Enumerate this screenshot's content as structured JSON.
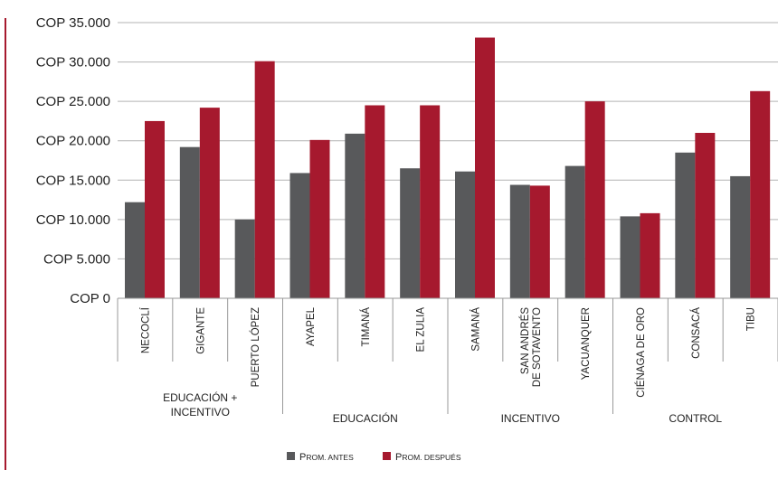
{
  "chart_data": {
    "type": "bar",
    "title": "",
    "xlabel": "",
    "ylabel": "",
    "ylim": [
      0,
      35000
    ],
    "yticks": [
      "COP 0",
      "COP 5.000",
      "COP 10.000",
      "COP 15.000",
      "COP 20.000",
      "COP 25.000",
      "COP 30.000",
      "COP 35.000"
    ],
    "ytick_values": [
      0,
      5000,
      10000,
      15000,
      20000,
      25000,
      30000,
      35000
    ],
    "grid": true,
    "legend_position": "bottom-center",
    "categories": [
      [
        "NECOCLÍ"
      ],
      [
        "GIGANTE"
      ],
      [
        "PUERTO LÓPEZ"
      ],
      [
        "AYAPEL"
      ],
      [
        "TIMANÁ"
      ],
      [
        "EL ZULIA"
      ],
      [
        "SAMANÁ"
      ],
      [
        "SAN ANDRÉS",
        "DE SOTAVENTO"
      ],
      [
        "YACUANQUER"
      ],
      [
        "CIÉNAGA DE  ORO"
      ],
      [
        "CONSACÁ"
      ],
      [
        "TIBU"
      ]
    ],
    "groups": [
      {
        "label": [
          "EDUCACIÓN +",
          "INCENTIVO"
        ],
        "count": 3
      },
      {
        "label": [
          "EDUCACIÓN"
        ],
        "count": 3
      },
      {
        "label": [
          "INCENTIVO"
        ],
        "count": 3
      },
      {
        "label": [
          "CONTROL"
        ],
        "count": 3
      }
    ],
    "series": [
      {
        "name_main": "P",
        "name_small": "ROM. ANTES",
        "color": "#58595b",
        "values": [
          12200,
          19200,
          10000,
          15900,
          20900,
          16500,
          16100,
          14400,
          16800,
          10400,
          18500,
          15500
        ]
      },
      {
        "name_main": "P",
        "name_small": "ROM. DESPUÉS",
        "color": "#a6192e",
        "values": [
          22500,
          24200,
          30100,
          20100,
          24500,
          24500,
          33100,
          14300,
          25000,
          10800,
          21000,
          26300
        ]
      }
    ],
    "axis_accent_color": "#a6192e",
    "grid_color": "#b3b3b3"
  }
}
